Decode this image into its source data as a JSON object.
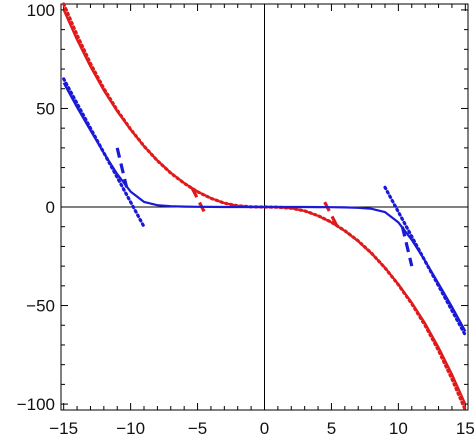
{
  "chart_data": {
    "type": "line",
    "title": "",
    "xlabel": "",
    "ylabel": "",
    "xlim": [
      -15.2,
      15.2
    ],
    "ylim": [
      -103,
      103
    ],
    "x_ticks": [
      -15,
      -10,
      -5,
      0,
      5,
      10,
      15
    ],
    "y_ticks": [
      -100,
      -50,
      0,
      50,
      100
    ],
    "x_tick_labels": [
      "−15",
      "−10",
      "−5",
      "0",
      "5",
      "10",
      "15"
    ],
    "y_tick_labels": [
      "−100",
      "−50",
      "0",
      "50",
      "100"
    ],
    "grid": false,
    "frame": true,
    "axes_through_origin": true,
    "colors": {
      "red": "#e01a1a",
      "blue": "#1a1ad6",
      "axis": "#000000"
    },
    "series": [
      {
        "color": "red",
        "style": "solid",
        "x": [
          -15,
          -14,
          -13,
          -12,
          -11,
          -10,
          -9,
          -8,
          -7,
          -6,
          -5,
          -4,
          -3,
          -2,
          -1,
          0,
          1,
          2,
          3,
          4,
          5,
          6,
          7,
          8,
          9,
          10,
          11,
          12,
          13,
          14,
          15
        ],
        "y": [
          100,
          84.8,
          71.2,
          59.1,
          48.5,
          39.2,
          30.8,
          23.6,
          17.4,
          12.2,
          7.8,
          4.5,
          2.0,
          0.6,
          0.1,
          0,
          -0.1,
          -0.6,
          -2.0,
          -4.5,
          -7.8,
          -12.2,
          -17.4,
          -23.6,
          -30.8,
          -39.2,
          -48.5,
          -59.1,
          -71.2,
          -84.8,
          -100
        ]
      },
      {
        "color": "red",
        "style": "dotted",
        "x": [
          -15,
          -14,
          -13,
          -12,
          -11,
          -10,
          -9,
          -8,
          -7,
          -6,
          -5,
          -4,
          -3,
          -2,
          -1,
          0,
          1,
          2,
          3,
          4,
          5,
          6,
          7,
          8,
          9,
          10,
          11,
          12,
          13,
          14,
          15
        ],
        "y": [
          103,
          87.2,
          72.8,
          60.2,
          49.1,
          39.5,
          30.9,
          23.5,
          17.2,
          12.0,
          7.7,
          4.4,
          2.0,
          0.6,
          0.1,
          0,
          -0.1,
          -0.6,
          -2.0,
          -4.4,
          -7.7,
          -12.0,
          -17.2,
          -23.5,
          -30.9,
          -39.5,
          -49.1,
          -60.2,
          -72.8,
          -87.2,
          -103
        ]
      },
      {
        "color": "red",
        "style": "dashed",
        "x": [
          -5.4,
          -4.5
        ],
        "y": [
          9.5,
          -2.5
        ]
      },
      {
        "color": "red",
        "style": "dashed",
        "x": [
          4.5,
          5.4
        ],
        "y": [
          2.5,
          -9.5
        ]
      },
      {
        "color": "blue",
        "style": "solid",
        "x": [
          -15,
          -14,
          -13,
          -12,
          -11,
          -10,
          -9,
          -8,
          -7,
          -6,
          -5,
          -4,
          -3,
          -2,
          -1,
          0,
          1,
          2,
          3,
          4,
          5,
          6,
          7,
          8,
          9,
          10,
          11,
          12,
          13,
          14,
          15
        ],
        "y": [
          63,
          50.6,
          38.8,
          27.4,
          16.7,
          7.8,
          2.6,
          0.9,
          0.4,
          0.2,
          0.1,
          0.05,
          0,
          0,
          0,
          0,
          0,
          0,
          0,
          -0.05,
          -0.1,
          -0.2,
          -0.4,
          -0.9,
          -2.6,
          -7.8,
          -16.7,
          -27.4,
          -38.8,
          -50.6,
          -63
        ]
      },
      {
        "color": "blue",
        "style": "dotted",
        "x": [
          -15,
          -9
        ],
        "y": [
          65,
          -10
        ]
      },
      {
        "color": "blue",
        "style": "dotted",
        "x": [
          9,
          15
        ],
        "y": [
          10,
          -65
        ]
      },
      {
        "color": "blue",
        "style": "dashed",
        "x": [
          -11,
          -10.3
        ],
        "y": [
          30,
          10
        ]
      },
      {
        "color": "blue",
        "style": "dashed",
        "x": [
          10.3,
          11
        ],
        "y": [
          -10,
          -30
        ]
      }
    ]
  }
}
